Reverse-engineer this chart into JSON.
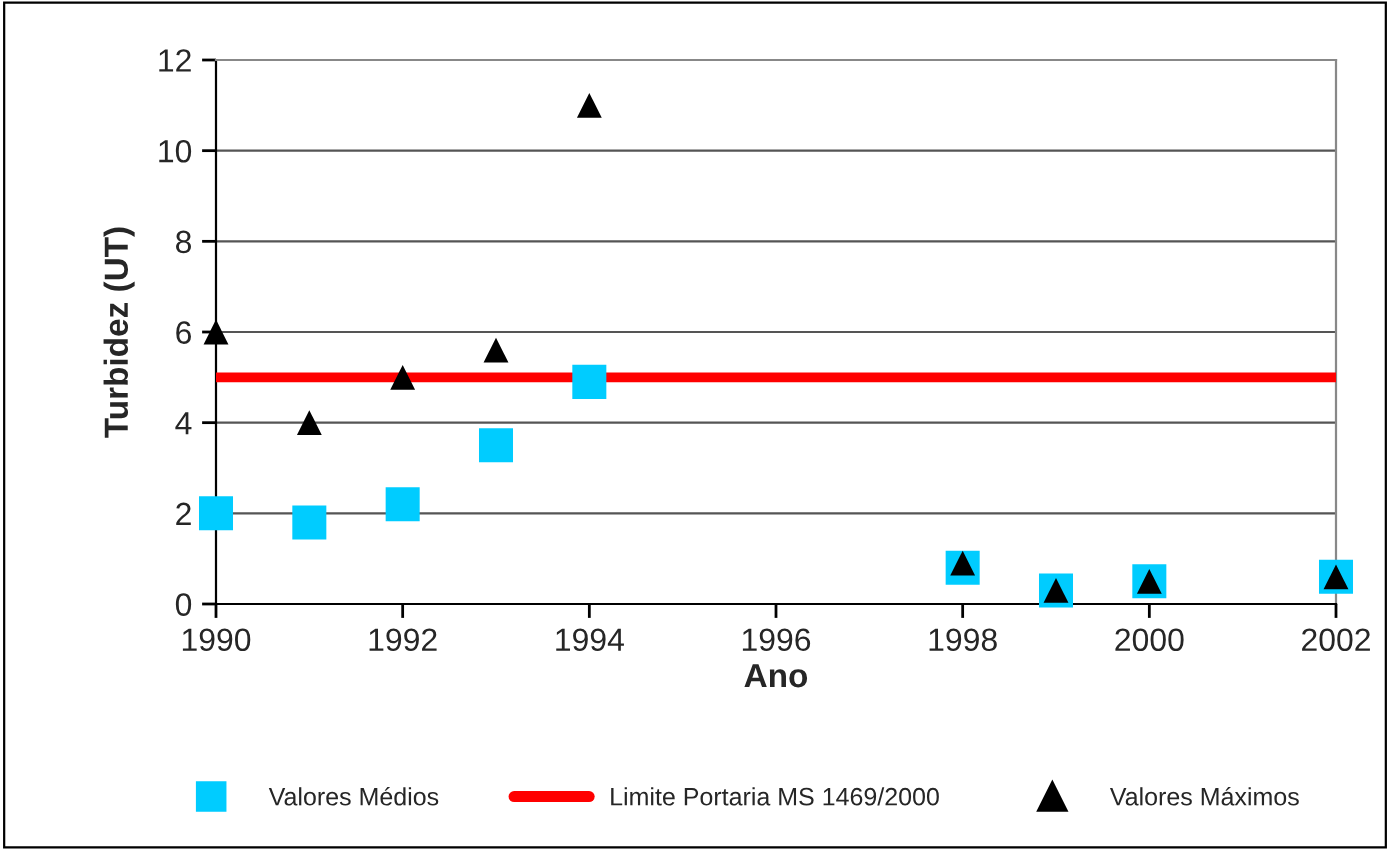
{
  "chart_data": {
    "type": "scatter",
    "xlabel": "Ano",
    "ylabel": "Turbidez (UT)",
    "xlim": [
      1990,
      2002
    ],
    "xticks": [
      1990,
      1992,
      1994,
      1996,
      1998,
      2000,
      2002
    ],
    "ylim": [
      0,
      12
    ],
    "yticks": [
      0,
      2,
      4,
      6,
      8,
      10,
      12
    ],
    "grid": "y",
    "legend": "bottom",
    "series": [
      {
        "name": "Valores Médios",
        "color": "#00ccff",
        "marker": "square",
        "x": [
          1990,
          1991,
          1992,
          1993,
          1994,
          1998,
          1999,
          2000,
          2002
        ],
        "values": [
          2.0,
          1.8,
          2.2,
          3.5,
          4.9,
          0.8,
          0.3,
          0.5,
          0.6
        ]
      },
      {
        "name": "Valores Máximos",
        "color": "#000000",
        "marker": "triangle",
        "x": [
          1990,
          1991,
          1992,
          1993,
          1994,
          1998,
          1999,
          2000,
          2002
        ],
        "values": [
          6.0,
          4.0,
          5.0,
          5.6,
          11.0,
          0.9,
          0.3,
          0.5,
          0.6
        ]
      }
    ],
    "ref_lines": [
      {
        "axis": "y",
        "value": 5,
        "label": "Limite Portaria MS 1469/2000",
        "color": "#ff0000",
        "line_style": "solid"
      }
    ]
  }
}
